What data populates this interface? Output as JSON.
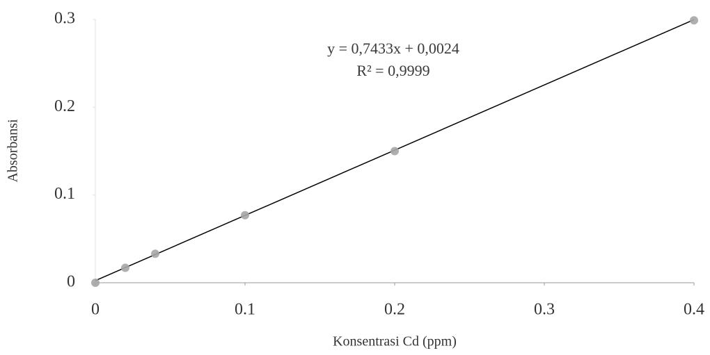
{
  "chart_data": {
    "type": "scatter",
    "x_label": "Konsentrasi Cd (ppm)",
    "y_label": "Absorbansi",
    "x": [
      0,
      0.02,
      0.04,
      0.1,
      0.2,
      0.4
    ],
    "values": [
      0,
      0.017,
      0.033,
      0.077,
      0.15,
      0.299
    ],
    "color": "#a6a6a6",
    "xlim": [
      0,
      0.4
    ],
    "xticks": [
      0,
      0.1,
      0.2,
      0.3,
      0.4
    ],
    "ylim": [
      0,
      0.3
    ],
    "yticks": [
      0,
      0.1,
      0.2,
      0.3
    ],
    "grid": false,
    "trendline": {
      "slope": 0.7433,
      "intercept": 0.0024,
      "color": "#000000",
      "label": "y = 0,7433x + 0,0024",
      "r2_label": "R² = 0,9999"
    }
  }
}
